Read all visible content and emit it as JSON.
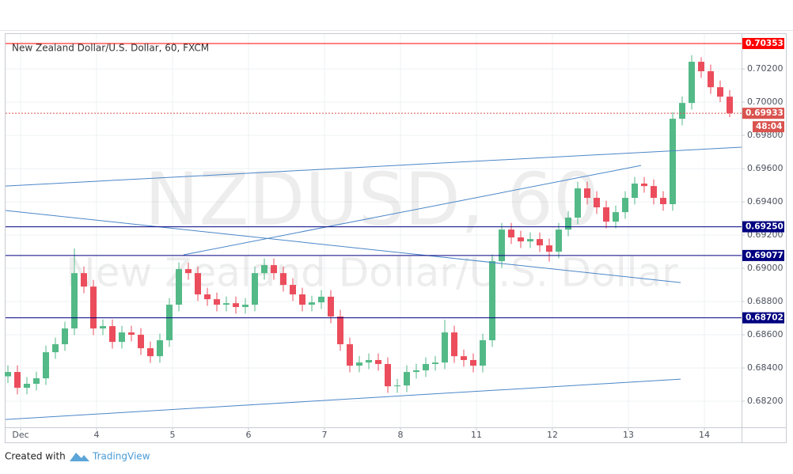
{
  "chart_data": {
    "type": "candlestick",
    "title": "New Zealand Dollar/U.S. Dollar, 60, FXCM",
    "watermark": [
      "NZDUSD, 60",
      "New Zealand Dollar/U.S. Dollar"
    ],
    "x": [
      -4,
      -1,
      2,
      5,
      8,
      11,
      14,
      17,
      20,
      23,
      26,
      29,
      32,
      35,
      38,
      41,
      44,
      47,
      50,
      53,
      56,
      59,
      62,
      65,
      68,
      71,
      74,
      77,
      80,
      83,
      86,
      89,
      92,
      95,
      98,
      101,
      104,
      107,
      110,
      113,
      116,
      119,
      122,
      125,
      128,
      131,
      134,
      137,
      140,
      143,
      146,
      149,
      152,
      155,
      158,
      161,
      164,
      167,
      170,
      173,
      176,
      179,
      182,
      185,
      188,
      191,
      194,
      197,
      200,
      203,
      206,
      209,
      212,
      215,
      218,
      221,
      224
    ],
    "series": [
      {
        "up_color": "#53b987",
        "down_color": "#eb4d5c",
        "open": [
          0.6835,
          0.68376,
          0.68281,
          0.68305,
          0.68338,
          0.68495,
          0.68543,
          0.68638,
          0.68971,
          0.6889,
          0.68638,
          0.68652,
          0.68557,
          0.68614,
          0.686,
          0.68519,
          0.68471,
          0.68567,
          0.68781,
          0.68995,
          0.68971,
          0.68843,
          0.68814,
          0.68781,
          0.6879,
          0.68767,
          0.68781,
          0.68971,
          0.69019,
          0.68971,
          0.689,
          0.68843,
          0.68781,
          0.68795,
          0.68829,
          0.6871,
          0.68543,
          0.68414,
          0.68433,
          0.68448,
          0.68424,
          0.6829,
          0.68295,
          0.68376,
          0.68386,
          0.68424,
          0.68433,
          0.68614,
          0.68471,
          0.68448,
          0.68414,
          0.68567,
          0.69043,
          0.69233,
          0.69186,
          0.69162,
          0.69176,
          0.69138,
          0.691,
          0.69233,
          0.69305,
          0.69481,
          0.69424,
          0.69367,
          0.69281,
          0.69338,
          0.69424,
          0.6951,
          0.69495,
          0.69424,
          0.69386,
          0.699,
          0.69995,
          0.70243,
          0.70186,
          0.7009,
          0.70033
        ],
        "high": [
          0.68416,
          0.68416,
          0.68345,
          0.68378,
          0.68535,
          0.68583,
          0.68678,
          0.6912,
          0.69011,
          0.6893,
          0.68692,
          0.68692,
          0.68654,
          0.68654,
          0.6864,
          0.68559,
          0.68607,
          0.68821,
          0.69035,
          0.69035,
          0.69011,
          0.68883,
          0.68854,
          0.6883,
          0.6883,
          0.68821,
          0.69011,
          0.69059,
          0.69059,
          0.69011,
          0.6894,
          0.68883,
          0.68835,
          0.68869,
          0.68869,
          0.6875,
          0.68583,
          0.68473,
          0.68488,
          0.68488,
          0.68464,
          0.68335,
          0.68416,
          0.68426,
          0.68464,
          0.68473,
          0.6869,
          0.68654,
          0.68511,
          0.68488,
          0.68607,
          0.69083,
          0.69273,
          0.69273,
          0.69226,
          0.69216,
          0.69216,
          0.69178,
          0.69273,
          0.69345,
          0.69521,
          0.69521,
          0.69464,
          0.69407,
          0.69378,
          0.69464,
          0.6955,
          0.6955,
          0.69535,
          0.69464,
          0.6994,
          0.70035,
          0.70283,
          0.7027,
          0.70226,
          0.7013,
          0.70073
        ],
        "low": [
          0.6831,
          0.68241,
          0.68241,
          0.68265,
          0.68298,
          0.68455,
          0.68503,
          0.68598,
          0.6885,
          0.68598,
          0.68598,
          0.68517,
          0.68517,
          0.6856,
          0.68479,
          0.68431,
          0.68431,
          0.68527,
          0.68741,
          0.68931,
          0.68803,
          0.68774,
          0.68741,
          0.68741,
          0.68727,
          0.68727,
          0.68741,
          0.68931,
          0.68931,
          0.6886,
          0.68803,
          0.68741,
          0.68741,
          0.68755,
          0.6867,
          0.68503,
          0.68374,
          0.68374,
          0.68393,
          0.68384,
          0.6825,
          0.6825,
          0.68255,
          0.68336,
          0.68346,
          0.68384,
          0.68393,
          0.68431,
          0.68408,
          0.68374,
          0.68374,
          0.68527,
          0.69003,
          0.69146,
          0.69122,
          0.69122,
          0.69098,
          0.6904,
          0.6906,
          0.69193,
          0.69265,
          0.69384,
          0.69327,
          0.69241,
          0.69241,
          0.69298,
          0.69384,
          0.69455,
          0.69384,
          0.69346,
          0.69346,
          0.6986,
          0.69955,
          0.70146,
          0.7005,
          0.7,
          0.6991
        ],
        "close": [
          0.68376,
          0.68281,
          0.68305,
          0.68338,
          0.68495,
          0.68543,
          0.68638,
          0.68971,
          0.6889,
          0.68638,
          0.68652,
          0.68557,
          0.68614,
          0.686,
          0.68519,
          0.68471,
          0.68567,
          0.68781,
          0.68995,
          0.68971,
          0.68843,
          0.68814,
          0.68781,
          0.6879,
          0.68767,
          0.68781,
          0.68971,
          0.69019,
          0.68971,
          0.689,
          0.68843,
          0.68781,
          0.68795,
          0.68829,
          0.6871,
          0.68543,
          0.68414,
          0.68433,
          0.68448,
          0.68424,
          0.6829,
          0.68295,
          0.68376,
          0.68386,
          0.68424,
          0.68433,
          0.68614,
          0.68471,
          0.68448,
          0.68414,
          0.68567,
          0.69043,
          0.69233,
          0.69186,
          0.69162,
          0.69176,
          0.69138,
          0.691,
          0.69233,
          0.69305,
          0.69481,
          0.69424,
          0.69367,
          0.69281,
          0.69338,
          0.69424,
          0.6951,
          0.69495,
          0.69424,
          0.69386,
          0.699,
          0.69995,
          0.70243,
          0.70186,
          0.7009,
          0.70033,
          0.69933
        ]
      }
    ],
    "xlim": [
      -4.75,
      227.75
    ],
    "ylim": [
      0.68043,
      0.7041
    ],
    "xticks": [
      {
        "value": 0,
        "label": "Dec"
      },
      {
        "value": 24,
        "label": "4"
      },
      {
        "value": 48,
        "label": "5"
      },
      {
        "value": 72,
        "label": "6"
      },
      {
        "value": 96,
        "label": "7"
      },
      {
        "value": 120,
        "label": "8"
      },
      {
        "value": 144,
        "label": "11"
      },
      {
        "value": 168,
        "label": "12"
      },
      {
        "value": 192,
        "label": "13"
      },
      {
        "value": 216,
        "label": "14"
      }
    ],
    "yticks": [
      {
        "value": 0.682,
        "label": "0.68200"
      },
      {
        "value": 0.684,
        "label": "0.68400"
      },
      {
        "value": 0.686,
        "label": "0.68600"
      },
      {
        "value": 0.688,
        "label": "0.68800"
      },
      {
        "value": 0.69,
        "label": "0.69000"
      },
      {
        "value": 0.692,
        "label": "0.69200"
      },
      {
        "value": 0.694,
        "label": "0.69400"
      },
      {
        "value": 0.696,
        "label": "0.69600"
      },
      {
        "value": 0.698,
        "label": "0.69800"
      },
      {
        "value": 0.7,
        "label": "0.70000"
      },
      {
        "value": 0.702,
        "label": "0.70200"
      }
    ],
    "grid": true,
    "price_lines": [
      {
        "value": 0.70353,
        "color": "#ff0000",
        "style": "solid"
      },
      {
        "value": 0.69933,
        "color": "#d9534f",
        "style": "dotted"
      },
      {
        "value": 0.6925,
        "label": "0.69250",
        "color": "#000080",
        "style": "solid"
      },
      {
        "value": 0.69077,
        "color": "#000080",
        "style": "solid"
      },
      {
        "value": 0.68702,
        "color": "#000080",
        "style": "solid"
      }
    ],
    "countdown": "48:04",
    "trendline_color": "#4a86c8",
    "trendlines": [
      {
        "x": [
          -4.75,
          227.75
        ],
        "y": [
          0.69495,
          0.69729
        ]
      },
      {
        "x": [
          -4.75,
          208.5
        ],
        "y": [
          0.69348,
          0.68914
        ]
      },
      {
        "x": [
          51.5,
          196
        ],
        "y": [
          0.69081,
          0.69619
        ]
      },
      {
        "x": [
          -4.75,
          208.5
        ],
        "y": [
          0.6809,
          0.68333
        ]
      }
    ]
  },
  "footer": {
    "prefix": "Created with",
    "brand": "TradingView"
  }
}
